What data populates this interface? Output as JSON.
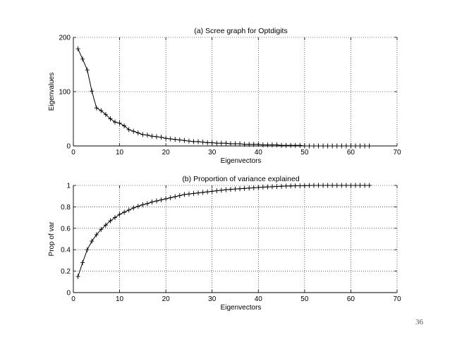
{
  "page_number": "36",
  "chart_data": [
    {
      "type": "line",
      "title": "(a) Scree graph for Optdigits",
      "xlabel": "Eigenvectors",
      "ylabel": "Eigenvalues",
      "xlim": [
        0,
        70
      ],
      "ylim": [
        0,
        200
      ],
      "xticks": [
        0,
        10,
        20,
        30,
        40,
        50,
        60,
        70
      ],
      "yticks": [
        0,
        100,
        200
      ],
      "grid": true,
      "marker": "+",
      "x": [
        1,
        2,
        3,
        4,
        5,
        6,
        7,
        8,
        9,
        10,
        11,
        12,
        13,
        14,
        15,
        16,
        17,
        18,
        19,
        20,
        21,
        22,
        23,
        24,
        25,
        26,
        27,
        28,
        29,
        30,
        31,
        32,
        33,
        34,
        35,
        36,
        37,
        38,
        39,
        40,
        41,
        42,
        43,
        44,
        45,
        46,
        47,
        48,
        49,
        50,
        51,
        52,
        53,
        54,
        55,
        56,
        57,
        58,
        59,
        60,
        61,
        62,
        63,
        64
      ],
      "y": [
        179,
        160,
        140,
        101,
        70,
        65,
        58,
        50,
        44,
        42,
        37,
        30,
        27,
        24,
        21,
        20,
        18,
        17,
        16,
        14,
        13,
        12,
        11,
        10,
        9,
        8,
        8,
        7,
        6,
        6,
        5,
        5,
        5,
        4,
        4,
        4,
        3,
        3,
        3,
        3,
        2,
        2,
        2,
        2,
        1,
        1,
        1,
        1,
        1,
        0,
        0,
        0,
        0,
        0,
        0,
        0,
        0,
        0,
        0,
        0,
        0,
        0,
        0,
        0
      ]
    },
    {
      "type": "line",
      "title": "(b) Proportion of variance explained",
      "xlabel": "Eigenvectors",
      "ylabel": "Prop of var",
      "xlim": [
        0,
        70
      ],
      "ylim": [
        0,
        1
      ],
      "xticks": [
        0,
        10,
        20,
        30,
        40,
        50,
        60,
        70
      ],
      "yticks": [
        0,
        0.2,
        0.4,
        0.6,
        0.8,
        1
      ],
      "grid": true,
      "marker": "+",
      "x": [
        1,
        2,
        3,
        4,
        5,
        6,
        7,
        8,
        9,
        10,
        11,
        12,
        13,
        14,
        15,
        16,
        17,
        18,
        19,
        20,
        21,
        22,
        23,
        24,
        25,
        26,
        27,
        28,
        29,
        30,
        31,
        32,
        33,
        34,
        35,
        36,
        37,
        38,
        39,
        40,
        41,
        42,
        43,
        44,
        45,
        46,
        47,
        48,
        49,
        50,
        51,
        52,
        53,
        54,
        55,
        56,
        57,
        58,
        59,
        60,
        61,
        62,
        63,
        64
      ],
      "y": [
        0.15,
        0.28,
        0.4,
        0.48,
        0.54,
        0.59,
        0.63,
        0.67,
        0.7,
        0.73,
        0.75,
        0.77,
        0.79,
        0.805,
        0.82,
        0.83,
        0.845,
        0.855,
        0.865,
        0.875,
        0.885,
        0.895,
        0.905,
        0.915,
        0.92,
        0.925,
        0.93,
        0.935,
        0.94,
        0.945,
        0.95,
        0.955,
        0.96,
        0.963,
        0.966,
        0.969,
        0.972,
        0.975,
        0.978,
        0.981,
        0.984,
        0.986,
        0.988,
        0.99,
        0.992,
        0.994,
        0.995,
        0.996,
        0.997,
        0.998,
        0.999,
        1,
        1,
        1,
        1,
        1,
        1,
        1,
        1,
        1,
        1,
        1,
        1,
        1
      ]
    }
  ]
}
